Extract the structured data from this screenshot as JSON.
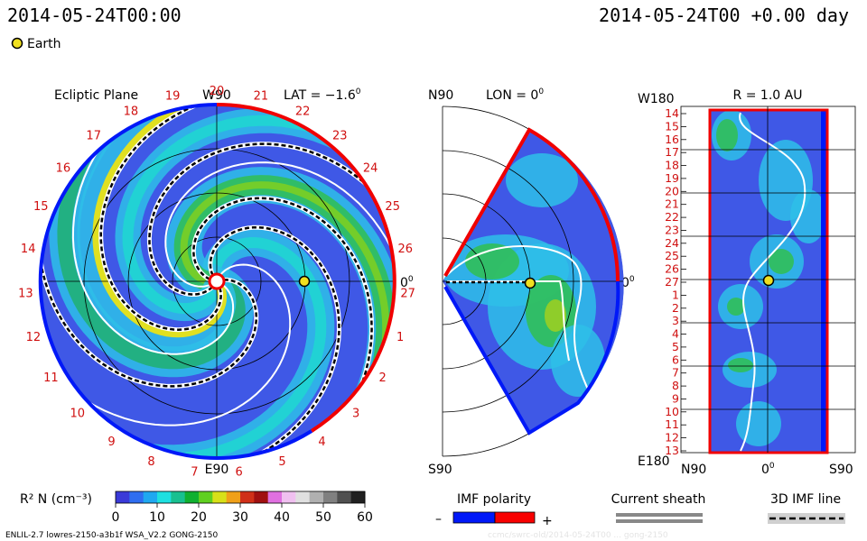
{
  "header": {
    "timestamp_left": "2014-05-24T00:00",
    "timestamp_right": "2014-05-24T00 +0.00 day",
    "legend_earth": "Earth"
  },
  "panels": {
    "ecliptic": {
      "title": "Ecliptic Plane",
      "lat": "LAT = −1.6",
      "lat_sup": "0",
      "top_label": "W90",
      "bottom_label": "E90",
      "right_label": "0",
      "right_sup": "0",
      "carrington": [
        "20",
        "21",
        "22",
        "23",
        "24",
        "25",
        "26",
        "27",
        "1",
        "2",
        "3",
        "4",
        "5",
        "6",
        "7",
        "8",
        "9",
        "10",
        "11",
        "12",
        "13",
        "14",
        "15",
        "16",
        "17",
        "18",
        "19"
      ]
    },
    "meridional": {
      "title": "LON = 0",
      "title_sup": "0",
      "top_label": "N90",
      "bottom_label": "S90",
      "right_label": "0",
      "right_sup": "0"
    },
    "radial": {
      "title": "R = 1.0 AU",
      "top_left": "W180",
      "bottom_left": "E180",
      "x_labels": [
        "N90",
        "0",
        "S90"
      ],
      "x_sup": "0",
      "y_labels": [
        "14",
        "15",
        "16",
        "17",
        "18",
        "19",
        "20",
        "21",
        "22",
        "23",
        "24",
        "25",
        "26",
        "27",
        "1",
        "2",
        "3",
        "4",
        "5",
        "6",
        "7",
        "8",
        "9",
        "10",
        "11",
        "12",
        "13"
      ]
    }
  },
  "colorbar": {
    "label": "R² N (cm⁻³)",
    "ticks": [
      "0",
      "10",
      "20",
      "30",
      "40",
      "50",
      "60"
    ],
    "colors": [
      "#3a3ad8",
      "#2f6ef0",
      "#1fa8f0",
      "#1ee0e0",
      "#18c090",
      "#10b030",
      "#60d020",
      "#d8e018",
      "#f0a018",
      "#d03018",
      "#a01010",
      "#e070e0",
      "#f0c0f0",
      "#e0e0e0",
      "#b0b0b0",
      "#808080",
      "#505050",
      "#202020"
    ]
  },
  "legends": {
    "imf_polarity": "IMF polarity",
    "imf_minus": "–",
    "imf_plus": "+",
    "imf_neg_color": "#0018f8",
    "imf_pos_color": "#f80000",
    "current_sheath": "Current sheath",
    "imf_3d": "3D IMF line"
  },
  "footer": {
    "model": "ENLIL-2.7 lowres-2150-a3b1f WSA_V2.2 GONG-2150",
    "watermark": "ccmc/swrc-old/2014-05-24T00 ... gong-2150"
  }
}
